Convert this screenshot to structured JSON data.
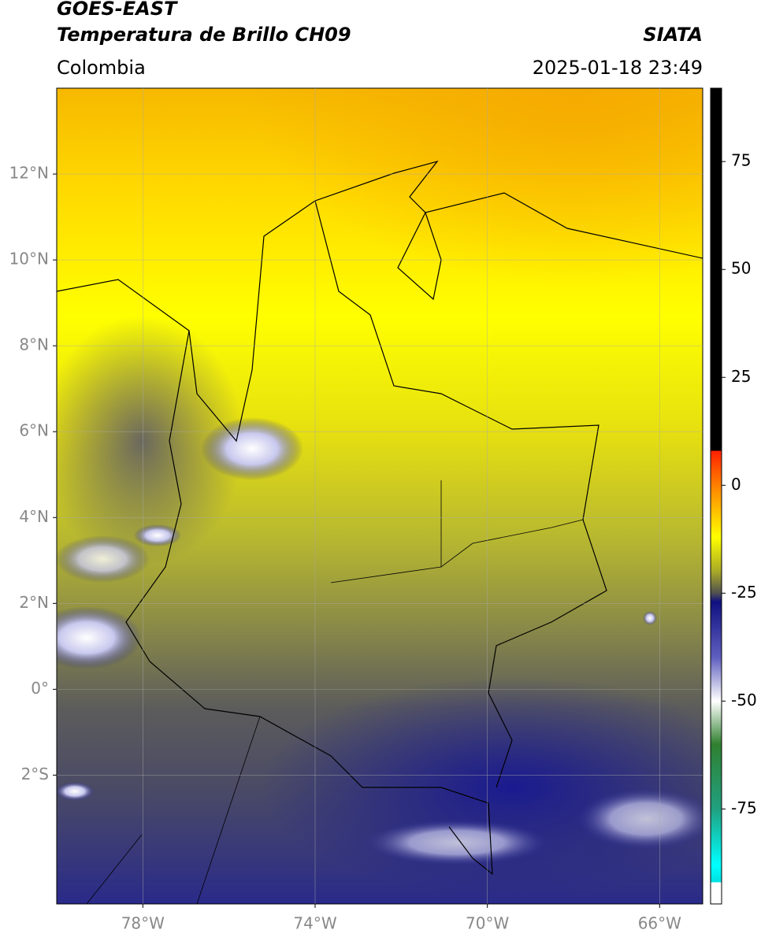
{
  "header": {
    "title": "GOES-EAST",
    "subtitle": "Temperatura de Brillo CH09",
    "source": "SIATA",
    "region": "Colombia",
    "datetime": "2025-01-18 23:49"
  },
  "map": {
    "xlim": [
      -80,
      -65
    ],
    "ylim": [
      -5,
      14
    ],
    "grid": true,
    "xticks": [
      {
        "value": -78,
        "label": "78°W"
      },
      {
        "value": -74,
        "label": "74°W"
      },
      {
        "value": -70,
        "label": "70°W"
      },
      {
        "value": -66,
        "label": "66°W"
      }
    ],
    "yticks": [
      {
        "value": 12,
        "label": "12°N"
      },
      {
        "value": 10,
        "label": "10°N"
      },
      {
        "value": 8,
        "label": "8°N"
      },
      {
        "value": 6,
        "label": "6°N"
      },
      {
        "value": 4,
        "label": "4°N"
      },
      {
        "value": 2,
        "label": "2°N"
      },
      {
        "value": 0,
        "label": "0°"
      },
      {
        "value": -2,
        "label": "2°S"
      }
    ]
  },
  "colorbar": {
    "lim": [
      -97,
      92
    ],
    "ticks": [
      75,
      50,
      25,
      0,
      -25,
      -50,
      -75
    ],
    "colormap": [
      {
        "value": 92,
        "color": "#000000"
      },
      {
        "value": 8,
        "color": "#000000"
      },
      {
        "value": 8,
        "color": "#ff2000"
      },
      {
        "value": 0,
        "color": "#ff8000"
      },
      {
        "value": -12,
        "color": "#ffff00"
      },
      {
        "value": -20,
        "color": "#a8a828"
      },
      {
        "value": -25,
        "color": "#505050"
      },
      {
        "value": -27,
        "color": "#101080"
      },
      {
        "value": -40,
        "color": "#6060c0"
      },
      {
        "value": -50,
        "color": "#ffffff"
      },
      {
        "value": -60,
        "color": "#308030"
      },
      {
        "value": -75,
        "color": "#20a080"
      },
      {
        "value": -88,
        "color": "#00ffff"
      },
      {
        "value": -92,
        "color": "#00e0e0"
      },
      {
        "value": -92,
        "color": "#ffffff"
      },
      {
        "value": -97,
        "color": "#ffffff"
      }
    ]
  }
}
